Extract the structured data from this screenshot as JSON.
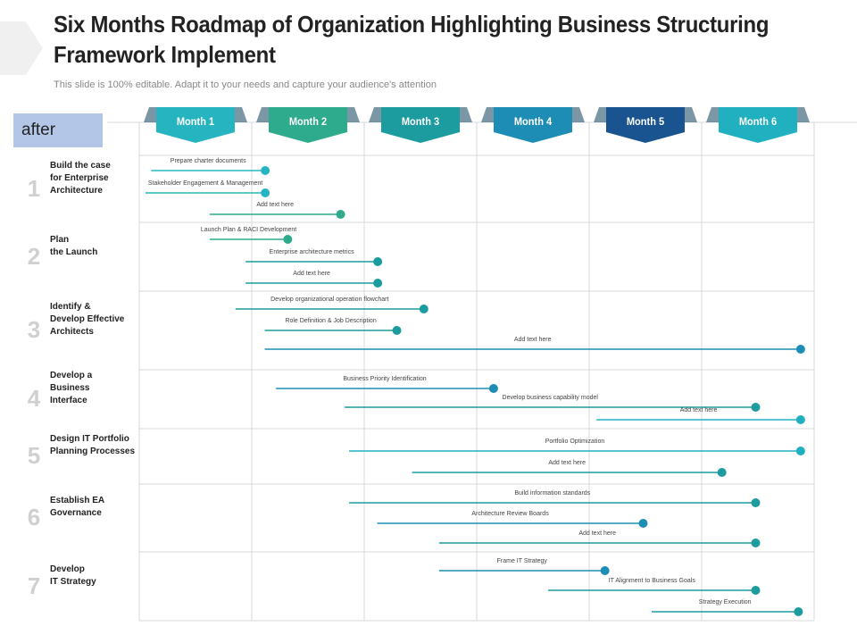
{
  "title": "Six Months Roadmap of Organization Highlighting Business Structuring Framework Implement",
  "subtitle": "This slide is 100% editable. Adapt it to your needs and capture your audience's attention",
  "after_label": "after",
  "months": [
    {
      "label": "Month 1",
      "color": "#26b5c0"
    },
    {
      "label": "Month 2",
      "color": "#2eaa8c"
    },
    {
      "label": "Month 3",
      "color": "#1c9c9e"
    },
    {
      "label": "Month 4",
      "color": "#1d8db5"
    },
    {
      "label": "Month 5",
      "color": "#1a5490"
    },
    {
      "label": "Month 6",
      "color": "#21b0c0"
    }
  ],
  "rows": [
    {
      "num": "1",
      "label": "Build the case\nfor Enterprise\nArchitecture"
    },
    {
      "num": "2",
      "label": "Plan\nthe Launch"
    },
    {
      "num": "3",
      "label": "Identify &\nDevelop Effective\nArchitects"
    },
    {
      "num": "4",
      "label": "Develop a\nBusiness\nInterface"
    },
    {
      "num": "5",
      "label": "Design IT Portfolio\nPlanning Processes"
    },
    {
      "num": "6",
      "label": "Establish EA\nGovernance"
    },
    {
      "num": "7",
      "label": "Develop\nIT Strategy"
    }
  ],
  "tasks": [
    {
      "label": "Prepare charter documents",
      "start": 0.05,
      "end": 1.12,
      "color": "#26b5c0"
    },
    {
      "label": "Stakeholder Engagement & Management",
      "start": 0.0,
      "end": 1.12,
      "color": "#26b5c0"
    },
    {
      "label": "Add text here",
      "start": 0.57,
      "end": 1.79,
      "color": "#2eaa8c"
    },
    {
      "label": "Launch Plan & RACI Development",
      "start": 0.57,
      "end": 1.32,
      "color": "#2eaa8c"
    },
    {
      "label": "Enterprise architecture metrics",
      "start": 0.89,
      "end": 2.12,
      "color": "#1c9c9e"
    },
    {
      "label": "Add text here",
      "start": 0.89,
      "end": 2.12,
      "color": "#1c9c9e"
    },
    {
      "label": "Develop organizational operation flowchart",
      "start": 0.8,
      "end": 2.53,
      "color": "#1c9c9e"
    },
    {
      "label": "Role Definition & Job Description",
      "start": 1.06,
      "end": 2.29,
      "color": "#1c9c9e"
    },
    {
      "label": "Add text here",
      "start": 1.06,
      "end": 5.88,
      "color": "#1d8db5"
    },
    {
      "label": "Business Priority Identification",
      "start": 1.16,
      "end": 3.15,
      "color": "#1d8db5"
    },
    {
      "label": "Develop business capability model",
      "start": 1.77,
      "end": 5.48,
      "color": "#1c9c9e"
    },
    {
      "label": "Add text here",
      "start": 4.01,
      "end": 5.88,
      "color": "#21b0c0"
    },
    {
      "label": "Portfolio Optimization",
      "start": 1.81,
      "end": 5.88,
      "color": "#21b0c0"
    },
    {
      "label": "Add text here",
      "start": 2.37,
      "end": 5.18,
      "color": "#1c9c9e"
    },
    {
      "label": "Build information standards",
      "start": 1.81,
      "end": 5.48,
      "color": "#1c9c9e"
    },
    {
      "label": "Architecture Review Boards",
      "start": 2.06,
      "end": 4.48,
      "color": "#1d8db5"
    },
    {
      "label": "Add text here",
      "start": 2.61,
      "end": 5.48,
      "color": "#1c9c9e"
    },
    {
      "label": "Frame IT Strategy",
      "start": 2.61,
      "end": 4.14,
      "color": "#1d8db5"
    },
    {
      "label": "IT Alignment to Business Goals",
      "start": 3.58,
      "end": 5.48,
      "color": "#1c9c9e"
    },
    {
      "label": "Strategy Execution",
      "start": 4.5,
      "end": 5.86,
      "color": "#1c9c9e"
    }
  ]
}
